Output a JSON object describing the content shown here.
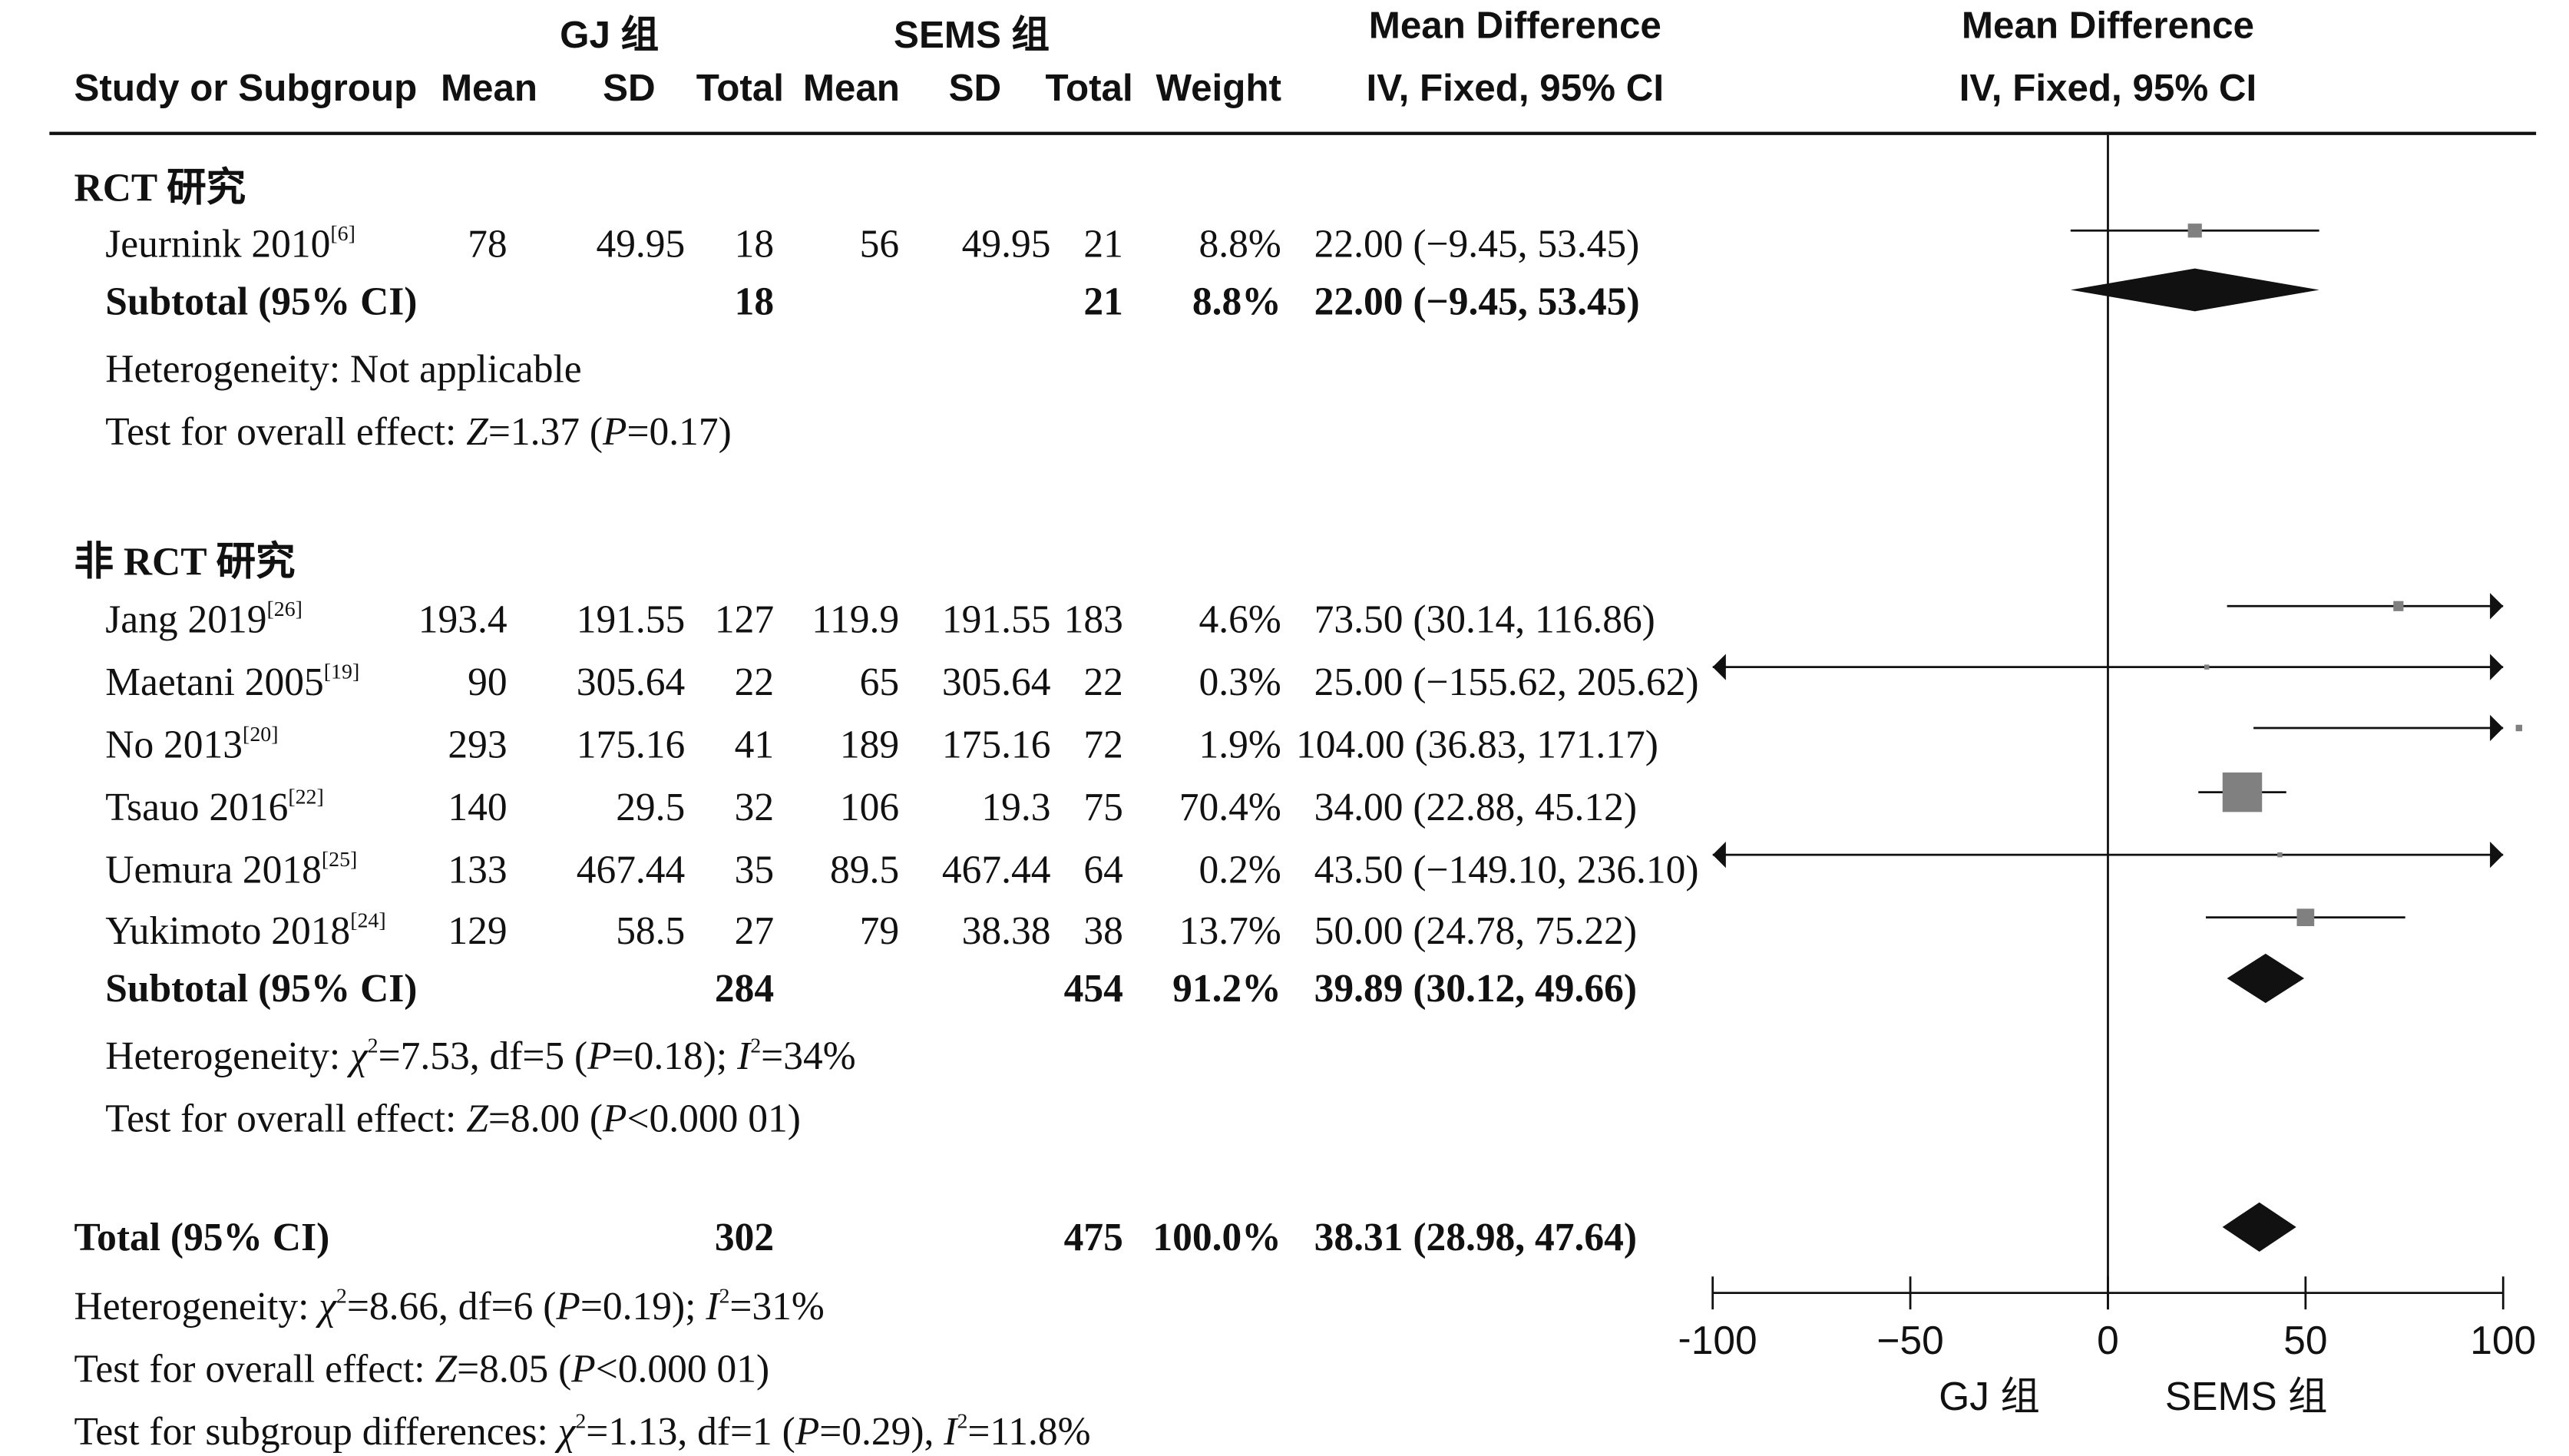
{
  "header": {
    "group1_title": "GJ 组",
    "group2_title": "SEMS 组",
    "effect_title": "Mean Difference",
    "plot_title": "Mean Difference",
    "col_study": "Study or Subgroup",
    "col_mean1": "Mean",
    "col_sd1": "SD",
    "col_total1": "Total",
    "col_mean2": "Mean",
    "col_sd2": "SD",
    "col_total2": "Total",
    "col_weight": "Weight",
    "col_effect": "IV, Fixed, 95% CI",
    "col_plot": "IV, Fixed, 95% CI"
  },
  "subgroups": [
    {
      "title": "RCT 研究",
      "studies": [
        {
          "name": "Jeurnink 2010",
          "ref": "[6]",
          "mean1": "78",
          "sd1": "49.95",
          "total1": "18",
          "mean2": "56",
          "sd2": "49.95",
          "total2": "21",
          "weight": "8.8%",
          "ci": "22.00 (−9.45, 53.45)"
        }
      ],
      "subtotal": {
        "label": "Subtotal (95% CI)",
        "total1": "18",
        "total2": "21",
        "weight": "8.8%",
        "ci": "22.00 (−9.45, 53.45)"
      },
      "heterogeneity": "Heterogeneity: Not applicable",
      "overall_effect": {
        "prefix": "Test for overall effect: ",
        "stat": "Z",
        "value": "=1.37 (",
        "p": "P",
        "pval": "=0.17)"
      }
    },
    {
      "title": "非 RCT 研究",
      "studies": [
        {
          "name": "Jang 2019",
          "ref": "[26]",
          "mean1": "193.4",
          "sd1": "191.55",
          "total1": "127",
          "mean2": "119.9",
          "sd2": "191.55",
          "total2": "183",
          "weight": "4.6%",
          "ci": "73.50 (30.14, 116.86)"
        },
        {
          "name": "Maetani 2005",
          "ref": "[19]",
          "mean1": "90",
          "sd1": "305.64",
          "total1": "22",
          "mean2": "65",
          "sd2": "305.64",
          "total2": "22",
          "weight": "0.3%",
          "ci": "25.00 (−155.62, 205.62)"
        },
        {
          "name": "No 2013",
          "ref": "[20]",
          "mean1": "293",
          "sd1": "175.16",
          "total1": "41",
          "mean2": "189",
          "sd2": "175.16",
          "total2": "72",
          "weight": "1.9%",
          "ci": "104.00 (36.83, 171.17)"
        },
        {
          "name": "Tsauo 2016",
          "ref": "[22]",
          "mean1": "140",
          "sd1": "29.5",
          "total1": "32",
          "mean2": "106",
          "sd2": "19.3",
          "total2": "75",
          "weight": "70.4%",
          "ci": "34.00 (22.88, 45.12)"
        },
        {
          "name": "Uemura 2018",
          "ref": "[25]",
          "mean1": "133",
          "sd1": "467.44",
          "total1": "35",
          "mean2": "89.5",
          "sd2": "467.44",
          "total2": "64",
          "weight": "0.2%",
          "ci": "43.50 (−149.10, 236.10)"
        },
        {
          "name": "Yukimoto 2018",
          "ref": "[24]",
          "mean1": "129",
          "sd1": "58.5",
          "total1": "27",
          "mean2": "79",
          "sd2": "38.38",
          "total2": "38",
          "weight": "13.7%",
          "ci": "50.00 (24.78, 75.22)"
        }
      ],
      "subtotal": {
        "label": "Subtotal (95% CI)",
        "total1": "284",
        "total2": "454",
        "weight": "91.2%",
        "ci": "39.89 (30.12, 49.66)"
      },
      "heterogeneity": {
        "prefix": "Heterogeneity: ",
        "chi": "χ",
        "chi_rest": "=7.53, df=5 (",
        "p": "P",
        "p_rest": "=0.18); ",
        "i": "I",
        "i_rest": "=34%"
      },
      "overall_effect": {
        "prefix": "Test for overall effect: ",
        "stat": "Z",
        "value": "=8.00 (",
        "p": "P",
        "pval": "<0.000 01)"
      }
    }
  ],
  "total": {
    "label": "Total (95% CI)",
    "total1": "302",
    "total2": "475",
    "weight": "100.0%",
    "ci": "38.31 (28.98, 47.64)"
  },
  "footer": {
    "heterogeneity": {
      "prefix": "Heterogeneity: ",
      "chi": "χ",
      "chi_rest": "=8.66, df=6 (",
      "p": "P",
      "p_rest": "=0.19); ",
      "i": "I",
      "i_rest": "=31%"
    },
    "overall_effect": {
      "prefix": "Test for overall effect: ",
      "stat": "Z",
      "value": "=8.05 (",
      "p": "P",
      "pval": "<0.000 01)"
    },
    "subgroup_diff": {
      "prefix": "Test for subgroup differences: ",
      "chi": "χ",
      "chi_rest": "=1.13, df=1 (",
      "p": "P",
      "p_rest": "=0.29), ",
      "i": "I",
      "i_rest": "=11.8%"
    },
    "sup2": "2"
  },
  "chart_data": {
    "type": "forest",
    "xlim": [
      -100,
      100
    ],
    "ticks": [
      -100,
      -50,
      0,
      50,
      100
    ],
    "tick_labels": [
      "−100",
      "−50",
      "0",
      "50",
      "100"
    ],
    "favours_left": "GJ 组",
    "favours_right": "SEMS 组",
    "colors": {
      "square": "#808080",
      "diamond": "#111111",
      "line": "#111111"
    },
    "studies": [
      {
        "name": "Jeurnink 2010",
        "md": 22.0,
        "lo": -9.45,
        "hi": 53.45,
        "weight": 8.8
      },
      {
        "name": "Jang 2019",
        "md": 73.5,
        "lo": 30.14,
        "hi": 116.86,
        "weight": 4.6
      },
      {
        "name": "Maetani 2005",
        "md": 25.0,
        "lo": -155.62,
        "hi": 205.62,
        "weight": 0.3
      },
      {
        "name": "No 2013",
        "md": 104.0,
        "lo": 36.83,
        "hi": 171.17,
        "weight": 1.9
      },
      {
        "name": "Tsauo 2016",
        "md": 34.0,
        "lo": 22.88,
        "hi": 45.12,
        "weight": 70.4
      },
      {
        "name": "Uemura 2018",
        "md": 43.5,
        "lo": -149.1,
        "hi": 236.1,
        "weight": 0.2
      },
      {
        "name": "Yukimoto 2018",
        "md": 50.0,
        "lo": 24.78,
        "hi": 75.22,
        "weight": 13.7
      }
    ],
    "diamonds": [
      {
        "name": "RCT Subtotal",
        "md": 22.0,
        "lo": -9.45,
        "hi": 53.45
      },
      {
        "name": "非 RCT Subtotal",
        "md": 39.89,
        "lo": 30.12,
        "hi": 49.66
      },
      {
        "name": "Total",
        "md": 38.31,
        "lo": 28.98,
        "hi": 47.64
      }
    ]
  }
}
